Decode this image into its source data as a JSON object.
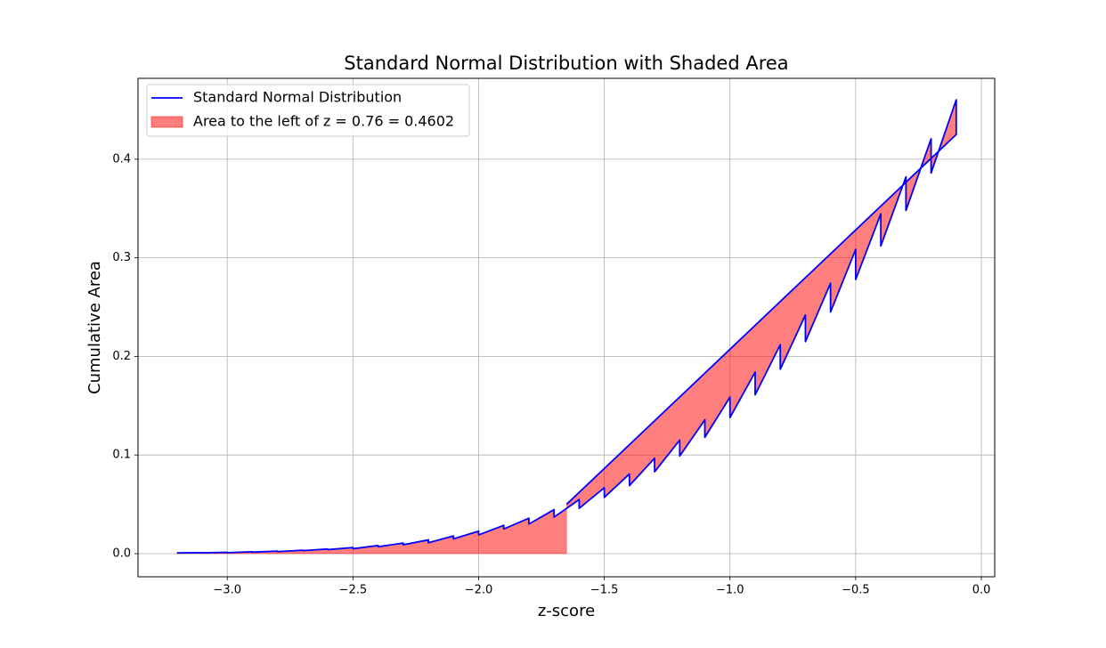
{
  "chart_data": {
    "type": "line",
    "title": "Standard Normal Distribution with Shaded Area",
    "x_label": "z-score",
    "y_label": "Cumulative Area",
    "x": [
      -3.2,
      -3.1,
      -3.1,
      -3.0,
      -3.0,
      -2.9,
      -2.9,
      -2.8,
      -2.8,
      -2.7,
      -2.7,
      -2.6,
      -2.6,
      -2.5,
      -2.5,
      -2.4,
      -2.4,
      -2.3,
      -2.3,
      -2.2,
      -2.2,
      -2.1,
      -2.1,
      -2.0,
      -2.0,
      -1.9,
      -1.9,
      -1.8,
      -1.8,
      -1.7,
      -1.7,
      -1.6,
      -1.6,
      -1.5,
      -1.5,
      -1.4,
      -1.4,
      -1.3,
      -1.3,
      -1.2,
      -1.2,
      -1.1,
      -1.1,
      -1.0,
      -1.0,
      -0.9,
      -0.9,
      -0.8,
      -0.8,
      -0.7,
      -0.7,
      -0.6,
      -0.6,
      -0.5,
      -0.5,
      -0.4,
      -0.4,
      -0.3,
      -0.3,
      -0.2,
      -0.2,
      -0.1,
      -0.1,
      -1.65
    ],
    "y": [
      0.0007,
      0.001,
      0.0008,
      0.0013,
      0.001,
      0.0019,
      0.0015,
      0.0026,
      0.002,
      0.0035,
      0.003,
      0.0047,
      0.004,
      0.0062,
      0.005,
      0.0082,
      0.007,
      0.0107,
      0.009,
      0.0139,
      0.011,
      0.0179,
      0.015,
      0.0228,
      0.019,
      0.0287,
      0.025,
      0.0359,
      0.03,
      0.0446,
      0.037,
      0.0548,
      0.046,
      0.0668,
      0.057,
      0.0808,
      0.069,
      0.0968,
      0.083,
      0.1151,
      0.099,
      0.1357,
      0.118,
      0.1587,
      0.138,
      0.1841,
      0.161,
      0.2119,
      0.187,
      0.242,
      0.215,
      0.2743,
      0.245,
      0.3085,
      0.278,
      0.3446,
      0.312,
      0.3821,
      0.348,
      0.4207,
      0.386,
      0.4602,
      0.425,
      0.05
    ],
    "series": [
      {
        "name": "Standard Normal Distribution",
        "color": "#0000ff",
        "kind": "line"
      },
      {
        "name": "Area to the left of z = 0.76 = 0.4602",
        "color": "#ff0000",
        "alpha": 0.5,
        "kind": "fill"
      }
    ],
    "xlim": [
      -3.355,
      0.053
    ],
    "ylim": [
      -0.0235,
      0.482
    ],
    "xticks": [
      {
        "value": -3.0,
        "label": "−3.0"
      },
      {
        "value": -2.5,
        "label": "−2.5"
      },
      {
        "value": -2.0,
        "label": "−2.0"
      },
      {
        "value": -1.5,
        "label": "−1.5"
      },
      {
        "value": -1.0,
        "label": "−1.0"
      },
      {
        "value": -0.5,
        "label": "−0.5"
      },
      {
        "value": 0,
        "label": "0.0"
      }
    ],
    "yticks": [
      {
        "value": 0,
        "label": "0.0"
      },
      0.1,
      0.2,
      0.3,
      0.4
    ],
    "grid": true,
    "legend": "upper left"
  }
}
